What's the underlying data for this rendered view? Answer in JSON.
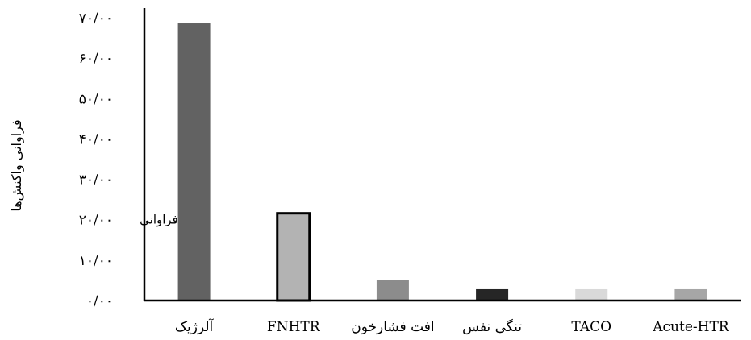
{
  "chart_data": {
    "type": "bar",
    "categories": [
      "آلرژیک",
      "FNHTR",
      "افت فشارخون",
      "تنگی نفس",
      "TACO",
      "Acute-HTR"
    ],
    "series": [
      {
        "name": "فراوانی",
        "values": [
          68.6,
          21.6,
          5.0,
          2.8,
          2.8,
          2.8
        ]
      }
    ],
    "bar_colors": [
      "#626262",
      "#b3b3b3",
      "#8c8c8c",
      "#262626",
      "#d9d9d9",
      "#a6a6a6"
    ],
    "bar_outline": [
      false,
      true,
      false,
      false,
      false,
      false
    ],
    "yticks": [
      "۰/۰۰",
      "۱۰/۰۰",
      "۲۰/۰۰",
      "۳۰/۰۰",
      "۴۰/۰۰",
      "۵۰/۰۰",
      "۶۰/۰۰",
      "۷۰/۰۰"
    ],
    "ylim": [
      0,
      70
    ],
    "ylabel": "فراوانی واکنش‌ها",
    "xlabel": "",
    "title": "",
    "grid": false,
    "legend": "none"
  }
}
